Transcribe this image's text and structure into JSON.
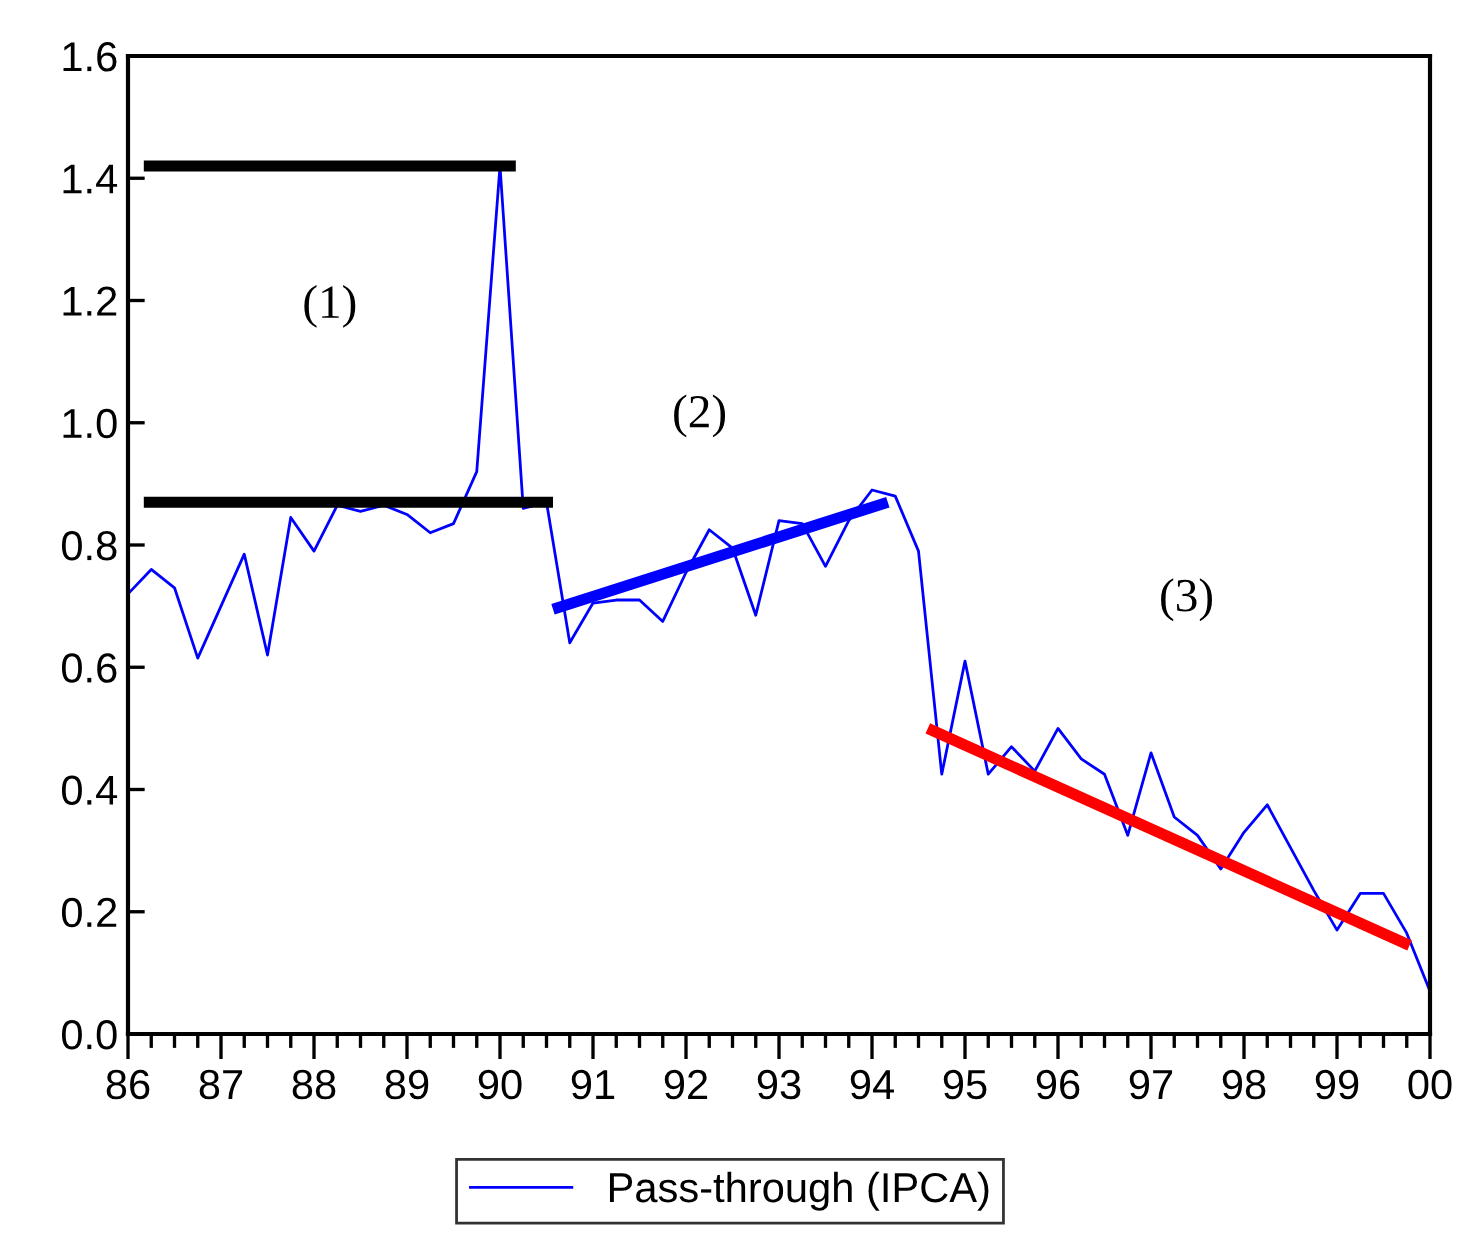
{
  "chart_data": {
    "type": "line",
    "x": [
      1986.0,
      1986.25,
      1986.5,
      1986.75,
      1987.0,
      1987.25,
      1987.5,
      1987.75,
      1988.0,
      1988.25,
      1988.5,
      1988.75,
      1989.0,
      1989.25,
      1989.5,
      1989.75,
      1990.0,
      1990.25,
      1990.5,
      1990.75,
      1991.0,
      1991.25,
      1991.5,
      1991.75,
      1992.0,
      1992.25,
      1992.5,
      1992.75,
      1993.0,
      1993.25,
      1993.5,
      1993.75,
      1994.0,
      1994.25,
      1994.5,
      1994.75,
      1995.0,
      1995.25,
      1995.5,
      1995.75,
      1996.0,
      1996.25,
      1996.5,
      1996.75,
      1997.0,
      1997.25,
      1997.5,
      1997.75,
      1998.0,
      1998.25,
      1998.5,
      1998.75,
      1999.0,
      1999.25,
      1999.5,
      1999.75,
      2000.0
    ],
    "series": [
      {
        "name": "Pass-through (IPCA)",
        "color": "#0000ff",
        "values": [
          0.72,
          0.76,
          0.73,
          0.615,
          0.7,
          0.785,
          0.62,
          0.845,
          0.79,
          0.865,
          0.855,
          0.865,
          0.85,
          0.82,
          0.835,
          0.92,
          1.42,
          0.86,
          0.87,
          0.64,
          0.705,
          0.71,
          0.71,
          0.675,
          0.755,
          0.825,
          0.795,
          0.685,
          0.84,
          0.835,
          0.765,
          0.84,
          0.89,
          0.88,
          0.79,
          0.425,
          0.61,
          0.425,
          0.47,
          0.43,
          0.5,
          0.45,
          0.425,
          0.325,
          0.46,
          0.355,
          0.325,
          0.27,
          0.33,
          0.375,
          0.305,
          0.235,
          0.17,
          0.23,
          0.23,
          0.165,
          0.07
        ]
      },
      {
        "color": "#000000",
        "x": [
          1986.17,
          1990.17
        ],
        "values": [
          1.42,
          1.42
        ]
      },
      {
        "color": "#000000",
        "x": [
          1986.17,
          1990.57
        ],
        "values": [
          0.87,
          0.87
        ]
      },
      {
        "color": "#0000ff",
        "x": [
          1990.57,
          1994.17
        ],
        "values": [
          0.695,
          0.87
        ]
      },
      {
        "color": "#ff0000",
        "x": [
          1994.6,
          1999.78
        ],
        "values": [
          0.5,
          0.145
        ]
      }
    ],
    "xlim": [
      1986,
      2000
    ],
    "xticks": [
      {
        "value": 1986,
        "label": "86"
      },
      {
        "value": 1987,
        "label": "87"
      },
      {
        "value": 1988,
        "label": "88"
      },
      {
        "value": 1989,
        "label": "89"
      },
      {
        "value": 1990,
        "label": "90"
      },
      {
        "value": 1991,
        "label": "91"
      },
      {
        "value": 1992,
        "label": "92"
      },
      {
        "value": 1993,
        "label": "93"
      },
      {
        "value": 1994,
        "label": "94"
      },
      {
        "value": 1995,
        "label": "95"
      },
      {
        "value": 1996,
        "label": "96"
      },
      {
        "value": 1997,
        "label": "97"
      },
      {
        "value": 1998,
        "label": "98"
      },
      {
        "value": 1999,
        "label": "99"
      },
      {
        "value": 2000,
        "label": "00"
      }
    ],
    "ylim": [
      0,
      1.6
    ],
    "yticks": [
      {
        "value": 0,
        "label": "0.0"
      },
      {
        "value": 0.2,
        "label": "0.2"
      },
      {
        "value": 0.4,
        "label": "0.4"
      },
      {
        "value": 0.6,
        "label": "0.6"
      },
      {
        "value": 0.8,
        "label": "0.8"
      },
      {
        "value": 1.0,
        "label": "1.0"
      },
      {
        "value": 1.2,
        "label": "1.2"
      },
      {
        "value": 1.4,
        "label": "1.4"
      },
      {
        "value": 1.6,
        "label": "1.6"
      }
    ],
    "annotations": [
      "(1)",
      "(2)",
      "(3)"
    ],
    "legend": "bottom",
    "grid": false,
    "line_style": "solid"
  }
}
